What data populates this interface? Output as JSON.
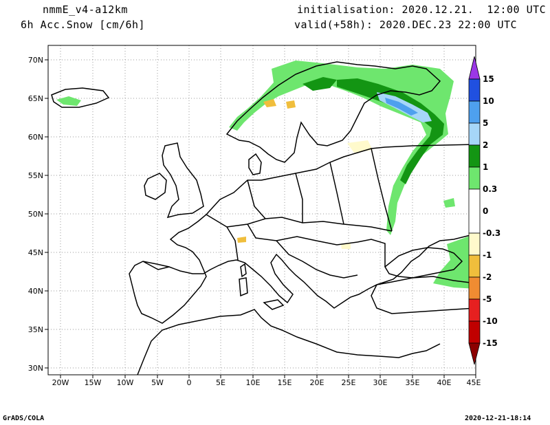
{
  "header": {
    "model": "nmmE_v4-a12km",
    "field": "6h Acc.Snow [cm/6h]",
    "init": "initialisation: 2020.12.21.  12:00 UTC",
    "valid": "valid(+58h): 2020.DEC.23 22:00 UTC"
  },
  "footer": {
    "left": "GrADS/COLA",
    "right": "2020-12-21-18:14"
  },
  "map": {
    "lon_labels": [
      "20W",
      "15W",
      "10W",
      "5W",
      "0",
      "5E",
      "10E",
      "15E",
      "20E",
      "25E",
      "30E",
      "35E",
      "40E",
      "45E"
    ],
    "lat_labels": [
      "30N",
      "35N",
      "40N",
      "45N",
      "50N",
      "55N",
      "60N",
      "65N",
      "70N"
    ]
  },
  "colorbar": {
    "labels": [
      "15",
      "10",
      "5",
      "2",
      "1",
      "0.3",
      "0",
      "-0.3",
      "-1",
      "-2",
      "-5",
      "-10",
      "-15"
    ],
    "colors": [
      "#9b37e6",
      "#2050e0",
      "#4ea0ee",
      "#a6d6f8",
      "#139513",
      "#6ee66e",
      "#ffffff",
      "#fffacc",
      "#f0be3c",
      "#f08c32",
      "#e62020",
      "#c00000",
      "#8c0000"
    ]
  }
}
